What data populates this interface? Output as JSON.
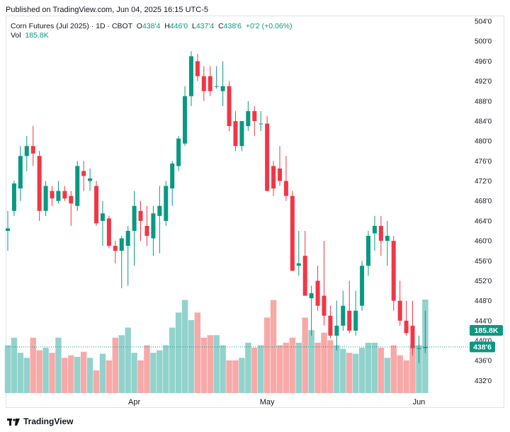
{
  "published": "Published on TradingView.com, Jun 04, 2025 16:15 UTC-5",
  "legend": {
    "symbol": "Corn Futures (Jul 2025) · 1D · CBOT",
    "o_label": "O",
    "o": "438'4",
    "h_label": "H",
    "h": "446'0",
    "l_label": "L",
    "l": "437'4",
    "c_label": "C",
    "c": "438'6",
    "chg": "+0'2 (+0.06%)",
    "vol_label": "Vol",
    "vol": "185.8K"
  },
  "footer": {
    "brand": "TradingView",
    "logo_icon": "tradingview-logo-icon"
  },
  "colors": {
    "up": "#089981",
    "down": "#f23645",
    "vol_up": "#92d2cc",
    "vol_down": "#f7a9a7"
  },
  "chart_data": {
    "type": "candlestick",
    "y_ticks": [
      "504'0",
      "500'0",
      "496'0",
      "492'0",
      "488'0",
      "484'0",
      "480'0",
      "476'0",
      "472'0",
      "468'0",
      "464'0",
      "460'0",
      "456'0",
      "452'0",
      "448'0",
      "444'0",
      "440'0",
      "436'0",
      "432'0"
    ],
    "ylim": [
      429.5,
      505
    ],
    "x_ticks": [
      {
        "label": "Apr",
        "index": 20
      },
      {
        "label": "May",
        "index": 41
      },
      {
        "label": "Jun",
        "index": 65
      }
    ],
    "last_price_label": "438'6",
    "last_price": 438.75,
    "last_volume_label": "185.8K",
    "volume_max": 190,
    "candles": [
      {
        "o": 462.0,
        "h": 466.0,
        "l": 458.0,
        "c": 462.5,
        "v": 95
      },
      {
        "o": 466.0,
        "h": 472.0,
        "l": 465.0,
        "c": 471.5,
        "v": 110
      },
      {
        "o": 470.5,
        "h": 479.0,
        "l": 468.0,
        "c": 477.0,
        "v": 80
      },
      {
        "o": 477.0,
        "h": 481.0,
        "l": 474.0,
        "c": 479.0,
        "v": 70
      },
      {
        "o": 479.0,
        "h": 483.0,
        "l": 475.0,
        "c": 477.5,
        "v": 110
      },
      {
        "o": 477.0,
        "h": 478.0,
        "l": 464.0,
        "c": 466.0,
        "v": 85
      },
      {
        "o": 466.0,
        "h": 472.0,
        "l": 465.0,
        "c": 471.0,
        "v": 90
      },
      {
        "o": 470.0,
        "h": 471.0,
        "l": 467.0,
        "c": 468.5,
        "v": 80
      },
      {
        "o": 468.0,
        "h": 472.0,
        "l": 467.5,
        "c": 470.0,
        "v": 110
      },
      {
        "o": 470.0,
        "h": 471.0,
        "l": 468.0,
        "c": 468.5,
        "v": 70
      },
      {
        "o": 469.0,
        "h": 470.0,
        "l": 463.0,
        "c": 467.5,
        "v": 75
      },
      {
        "o": 467.0,
        "h": 476.0,
        "l": 466.0,
        "c": 475.0,
        "v": 72
      },
      {
        "o": 474.0,
        "h": 476.0,
        "l": 470.0,
        "c": 473.0,
        "v": 82
      },
      {
        "o": 472.0,
        "h": 474.5,
        "l": 470.0,
        "c": 472.5,
        "v": 70
      },
      {
        "o": 471.0,
        "h": 472.0,
        "l": 463.0,
        "c": 463.5,
        "v": 45
      },
      {
        "o": 464.0,
        "h": 468.0,
        "l": 459.0,
        "c": 465.5,
        "v": 78
      },
      {
        "o": 464.5,
        "h": 465.0,
        "l": 458.5,
        "c": 459.0,
        "v": 65
      },
      {
        "o": 459.0,
        "h": 460.0,
        "l": 455.5,
        "c": 458.0,
        "v": 110
      },
      {
        "o": 458.0,
        "h": 461.0,
        "l": 450.5,
        "c": 460.5,
        "v": 115
      },
      {
        "o": 459.0,
        "h": 463.0,
        "l": 451.0,
        "c": 462.0,
        "v": 130
      },
      {
        "o": 462.0,
        "h": 470.0,
        "l": 455.0,
        "c": 467.0,
        "v": 80
      },
      {
        "o": 466.0,
        "h": 468.0,
        "l": 460.0,
        "c": 464.0,
        "v": 65
      },
      {
        "o": 463.0,
        "h": 467.0,
        "l": 459.0,
        "c": 461.0,
        "v": 95
      },
      {
        "o": 460.5,
        "h": 467.0,
        "l": 457.0,
        "c": 465.5,
        "v": 80
      },
      {
        "o": 465.0,
        "h": 471.0,
        "l": 457.5,
        "c": 467.0,
        "v": 85
      },
      {
        "o": 464.0,
        "h": 472.0,
        "l": 463.0,
        "c": 471.0,
        "v": 95
      },
      {
        "o": 470.5,
        "h": 476.0,
        "l": 467.0,
        "c": 475.5,
        "v": 130
      },
      {
        "o": 475.0,
        "h": 481.0,
        "l": 474.0,
        "c": 480.5,
        "v": 160
      },
      {
        "o": 479.5,
        "h": 491.0,
        "l": 479.0,
        "c": 489.0,
        "v": 185
      },
      {
        "o": 489.0,
        "h": 498.0,
        "l": 487.0,
        "c": 497.0,
        "v": 145
      },
      {
        "o": 496.0,
        "h": 497.5,
        "l": 492.0,
        "c": 493.0,
        "v": 160
      },
      {
        "o": 493.0,
        "h": 495.0,
        "l": 488.0,
        "c": 490.0,
        "v": 110
      },
      {
        "o": 493.0,
        "h": 495.0,
        "l": 489.0,
        "c": 490.0,
        "v": 115
      },
      {
        "o": 491.0,
        "h": 495.0,
        "l": 490.5,
        "c": 491.0,
        "v": 115
      },
      {
        "o": 490.0,
        "h": 496.0,
        "l": 487.0,
        "c": 491.0,
        "v": 95
      },
      {
        "o": 491.0,
        "h": 492.0,
        "l": 482.0,
        "c": 483.0,
        "v": 65
      },
      {
        "o": 484.0,
        "h": 486.0,
        "l": 478.0,
        "c": 479.0,
        "v": 65
      },
      {
        "o": 479.0,
        "h": 484.0,
        "l": 478.0,
        "c": 484.0,
        "v": 70
      },
      {
        "o": 483.0,
        "h": 488.0,
        "l": 482.0,
        "c": 486.0,
        "v": 100
      },
      {
        "o": 486.0,
        "h": 487.0,
        "l": 481.0,
        "c": 484.0,
        "v": 90
      },
      {
        "o": 483.5,
        "h": 486.0,
        "l": 482.0,
        "c": 483.5,
        "v": 95
      },
      {
        "o": 483.5,
        "h": 485.0,
        "l": 470.0,
        "c": 470.0,
        "v": 150
      },
      {
        "o": 475.0,
        "h": 476.0,
        "l": 469.0,
        "c": 470.5,
        "v": 185
      },
      {
        "o": 474.5,
        "h": 479.0,
        "l": 471.0,
        "c": 472.0,
        "v": 95
      },
      {
        "o": 472.0,
        "h": 477.0,
        "l": 468.0,
        "c": 469.0,
        "v": 100
      },
      {
        "o": 469.0,
        "h": 470.0,
        "l": 454.0,
        "c": 454.0,
        "v": 110
      },
      {
        "o": 455.0,
        "h": 462.0,
        "l": 453.0,
        "c": 455.5,
        "v": 100
      },
      {
        "o": 457.0,
        "h": 462.0,
        "l": 449.0,
        "c": 449.0,
        "v": 150
      },
      {
        "o": 448.5,
        "h": 451.0,
        "l": 441.0,
        "c": 449.5,
        "v": 125
      },
      {
        "o": 452.0,
        "h": 455.0,
        "l": 446.0,
        "c": 447.0,
        "v": 100
      },
      {
        "o": 449.0,
        "h": 460.0,
        "l": 443.0,
        "c": 445.0,
        "v": 120
      },
      {
        "o": 445.0,
        "h": 447.0,
        "l": 440.5,
        "c": 441.0,
        "v": 105
      },
      {
        "o": 441.0,
        "h": 448.0,
        "l": 438.0,
        "c": 443.0,
        "v": 95
      },
      {
        "o": 443.0,
        "h": 450.0,
        "l": 442.0,
        "c": 447.0,
        "v": 88
      },
      {
        "o": 446.0,
        "h": 452.0,
        "l": 441.5,
        "c": 442.0,
        "v": 80
      },
      {
        "o": 442.0,
        "h": 450.0,
        "l": 441.0,
        "c": 446.0,
        "v": 78
      },
      {
        "o": 447.0,
        "h": 456.0,
        "l": 446.0,
        "c": 455.0,
        "v": 90
      },
      {
        "o": 455.0,
        "h": 462.0,
        "l": 453.0,
        "c": 461.0,
        "v": 100
      },
      {
        "o": 461.5,
        "h": 465.0,
        "l": 458.0,
        "c": 463.0,
        "v": 100
      },
      {
        "o": 463.0,
        "h": 465.0,
        "l": 457.0,
        "c": 460.0,
        "v": 90
      },
      {
        "o": 460.0,
        "h": 464.0,
        "l": 455.0,
        "c": 461.0,
        "v": 70
      },
      {
        "o": 460.0,
        "h": 461.0,
        "l": 446.0,
        "c": 448.0,
        "v": 95
      },
      {
        "o": 448.0,
        "h": 452.0,
        "l": 443.0,
        "c": 444.0,
        "v": 75
      },
      {
        "o": 444.0,
        "h": 448.0,
        "l": 441.0,
        "c": 441.5,
        "v": 65
      },
      {
        "o": 443.0,
        "h": 448.0,
        "l": 437.0,
        "c": 438.5,
        "v": 95
      },
      {
        "o": 438.5,
        "h": 441.0,
        "l": 435.5,
        "c": 438.5,
        "v": 95
      },
      {
        "o": 438.5,
        "h": 446.0,
        "l": 437.5,
        "c": 438.75,
        "v": 185.8
      }
    ]
  }
}
